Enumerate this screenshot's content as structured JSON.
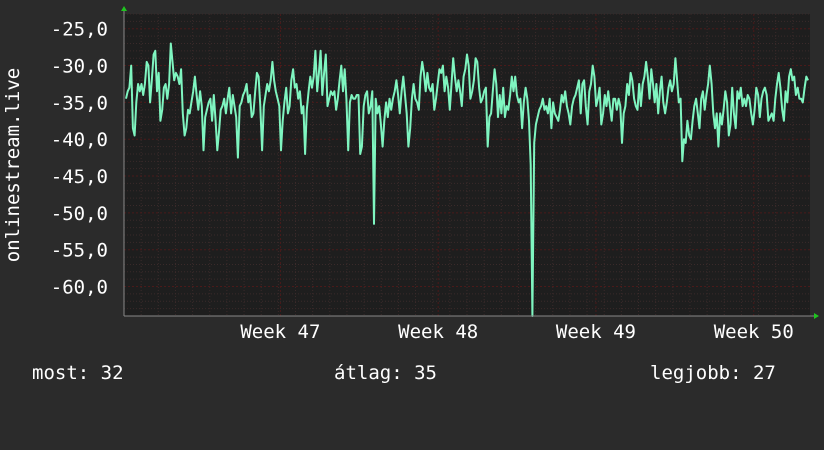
{
  "colors": {
    "background": "#2b2b2b",
    "plot_background": "#1e1e1e",
    "line": "#7ff5c0",
    "grid": "#4a1a1a",
    "grid_minor": "#3a2a2a",
    "axis_arrow": "#1fc41f",
    "text": "#ffffff"
  },
  "stats": {
    "current": "most: 32",
    "average": "átlag: 35",
    "best": "legjobb: 27"
  },
  "chart_data": {
    "type": "line",
    "ylabel": "onlinestream.live",
    "ylim": [
      -64,
      -23
    ],
    "xlim": [
      0,
      100
    ],
    "y_ticks": [
      {
        "value": -25,
        "label": "-25,0"
      },
      {
        "value": -30,
        "label": "-30,0"
      },
      {
        "value": -35,
        "label": "-35,0"
      },
      {
        "value": -40,
        "label": "-40,0"
      },
      {
        "value": -45,
        "label": "-45,0"
      },
      {
        "value": -50,
        "label": "-50,0"
      },
      {
        "value": -55,
        "label": "-55,0"
      },
      {
        "value": -60,
        "label": "-60,0"
      }
    ],
    "x_ticks": [
      {
        "value": 22.8,
        "label": "Week 47"
      },
      {
        "value": 45.8,
        "label": "Week 48"
      },
      {
        "value": 68.8,
        "label": "Week 49"
      },
      {
        "value": 91.8,
        "label": "Week 50"
      }
    ],
    "grid": true,
    "series": [
      {
        "values": [
          -34.5,
          -33.5,
          -33.0,
          -30.0,
          -38.5,
          -39.5,
          -35.0,
          -32.5,
          -33.5,
          -32.5,
          -34.0,
          -32.5,
          -29.5,
          -30.0,
          -35.0,
          -32.0,
          -28.5,
          -28.0,
          -33.5,
          -31.0,
          -37.5,
          -36.0,
          -33.0,
          -32.5,
          -34.5,
          -32.5,
          -27.0,
          -29.5,
          -32.0,
          -31.0,
          -31.5,
          -32.5,
          -30.5,
          -36.5,
          -39.5,
          -38.5,
          -36.0,
          -36.5,
          -35.0,
          -33.5,
          -31.5,
          -34.0,
          -36.0,
          -33.5,
          -35.5,
          -41.5,
          -37.0,
          -36.0,
          -35.0,
          -34.5,
          -37.5,
          -34.0,
          -37.5,
          -41.5,
          -39.0,
          -36.0,
          -35.5,
          -34.5,
          -36.5,
          -34.5,
          -33.0,
          -36.5,
          -34.0,
          -35.5,
          -37.0,
          -42.5,
          -35.5,
          -35.0,
          -34.0,
          -33.5,
          -32.5,
          -35.0,
          -34.0,
          -37.0,
          -36.5,
          -33.5,
          -31.0,
          -31.5,
          -35.5,
          -41.5,
          -35.5,
          -34.0,
          -32.5,
          -33.5,
          -32.0,
          -29.5,
          -32.0,
          -33.5,
          -34.5,
          -35.5,
          -41.5,
          -37.5,
          -35.0,
          -33.0,
          -36.5,
          -35.5,
          -32.0,
          -30.5,
          -33.0,
          -32.5,
          -34.5,
          -33.5,
          -36.5,
          -35.5,
          -42.0,
          -36.0,
          -33.5,
          -31.5,
          -33.0,
          -31.5,
          -28.0,
          -33.5,
          -31.0,
          -28.0,
          -34.0,
          -31.0,
          -28.5,
          -35.5,
          -34.5,
          -33.5,
          -34.0,
          -33.5,
          -36.0,
          -34.5,
          -32.0,
          -30.0,
          -33.5,
          -30.5,
          -34.5,
          -41.5,
          -35.0,
          -34.0,
          -34.5,
          -34.5,
          -34.0,
          -34.0,
          -42.0,
          -41.0,
          -35.5,
          -34.0,
          -33.5,
          -36.5,
          -35.5,
          -33.5,
          -51.5,
          -34.5,
          -36.5,
          -35.5,
          -38.0,
          -41.0,
          -37.5,
          -35.0,
          -37.0,
          -34.5,
          -36.0,
          -34.5,
          -33.5,
          -32.0,
          -34.0,
          -36.5,
          -33.5,
          -31.5,
          -34.0,
          -36.5,
          -41.0,
          -38.5,
          -34.5,
          -32.5,
          -34.5,
          -35.0,
          -36.0,
          -31.5,
          -29.5,
          -31.0,
          -33.5,
          -31.0,
          -33.0,
          -33.5,
          -32.5,
          -36.0,
          -34.5,
          -32.5,
          -30.5,
          -31.0,
          -30.0,
          -33.5,
          -31.5,
          -33.0,
          -36.0,
          -32.5,
          -29.0,
          -31.5,
          -33.5,
          -32.0,
          -33.5,
          -35.5,
          -31.5,
          -30.5,
          -28.5,
          -30.0,
          -34.5,
          -33.5,
          -32.0,
          -29.0,
          -29.5,
          -33.0,
          -35.0,
          -34.5,
          -33.5,
          -33.0,
          -41.0,
          -37.0,
          -36.5,
          -33.5,
          -30.5,
          -32.5,
          -37.0,
          -34.0,
          -36.5,
          -33.0,
          -37.0,
          -35.5,
          -36.0,
          -34.0,
          -31.5,
          -33.5,
          -31.5,
          -34.0,
          -35.0,
          -34.5,
          -38.5,
          -35.0,
          -33.0,
          -34.5,
          -37.5,
          -43.5,
          -64.0,
          -40.5,
          -38.0,
          -37.0,
          -36.0,
          -35.5,
          -34.5,
          -36.0,
          -35.5,
          -36.5,
          -34.5,
          -38.5,
          -35.0,
          -36.5,
          -37.0,
          -37.5,
          -36.0,
          -34.0,
          -35.0,
          -33.5,
          -35.5,
          -36.5,
          -38.0,
          -35.5,
          -34.5,
          -34.0,
          -33.0,
          -32.0,
          -36.5,
          -32.5,
          -32.0,
          -35.5,
          -38.0,
          -33.5,
          -32.5,
          -30.0,
          -31.5,
          -35.5,
          -34.5,
          -33.0,
          -38.0,
          -36.5,
          -34.0,
          -35.5,
          -33.5,
          -35.5,
          -37.5,
          -34.5,
          -34.5,
          -36.0,
          -34.5,
          -35.5,
          -40.5,
          -36.5,
          -35.5,
          -32.5,
          -34.0,
          -31.0,
          -32.0,
          -34.5,
          -35.5,
          -36.0,
          -32.5,
          -35.5,
          -32.5,
          -31.5,
          -29.5,
          -31.5,
          -34.5,
          -30.5,
          -32.5,
          -35.0,
          -32.5,
          -36.5,
          -33.5,
          -31.5,
          -35.0,
          -36.5,
          -35.0,
          -33.0,
          -32.0,
          -33.5,
          -32.5,
          -29.0,
          -32.0,
          -35.0,
          -34.5,
          -43.0,
          -40.0,
          -40.5,
          -37.5,
          -39.5,
          -40.0,
          -37.5,
          -35.5,
          -34.5,
          -36.5,
          -38.5,
          -34.5,
          -33.5,
          -36.0,
          -34.0,
          -32.5,
          -30.0,
          -32.5,
          -36.5,
          -38.5,
          -36.5,
          -41.0,
          -36.5,
          -38.0,
          -36.0,
          -33.5,
          -35.0,
          -39.5,
          -38.0,
          -33.0,
          -36.5,
          -38.5,
          -33.5,
          -34.5,
          -33.0,
          -35.5,
          -34.5,
          -35.5,
          -34.0,
          -34.5,
          -36.5,
          -38.0,
          -36.0,
          -33.0,
          -34.0,
          -37.0,
          -34.5,
          -33.5,
          -33.0,
          -34.0,
          -37.5,
          -37.0,
          -36.5,
          -37.5,
          -34.5,
          -32.5,
          -31.0,
          -33.0,
          -36.0,
          -37.5,
          -33.5,
          -35.0,
          -31.5,
          -30.5,
          -32.0,
          -31.5,
          -34.0,
          -33.0,
          -34.5,
          -34.5,
          -35.0,
          -33.0,
          -31.5,
          -32.0
        ]
      }
    ]
  }
}
